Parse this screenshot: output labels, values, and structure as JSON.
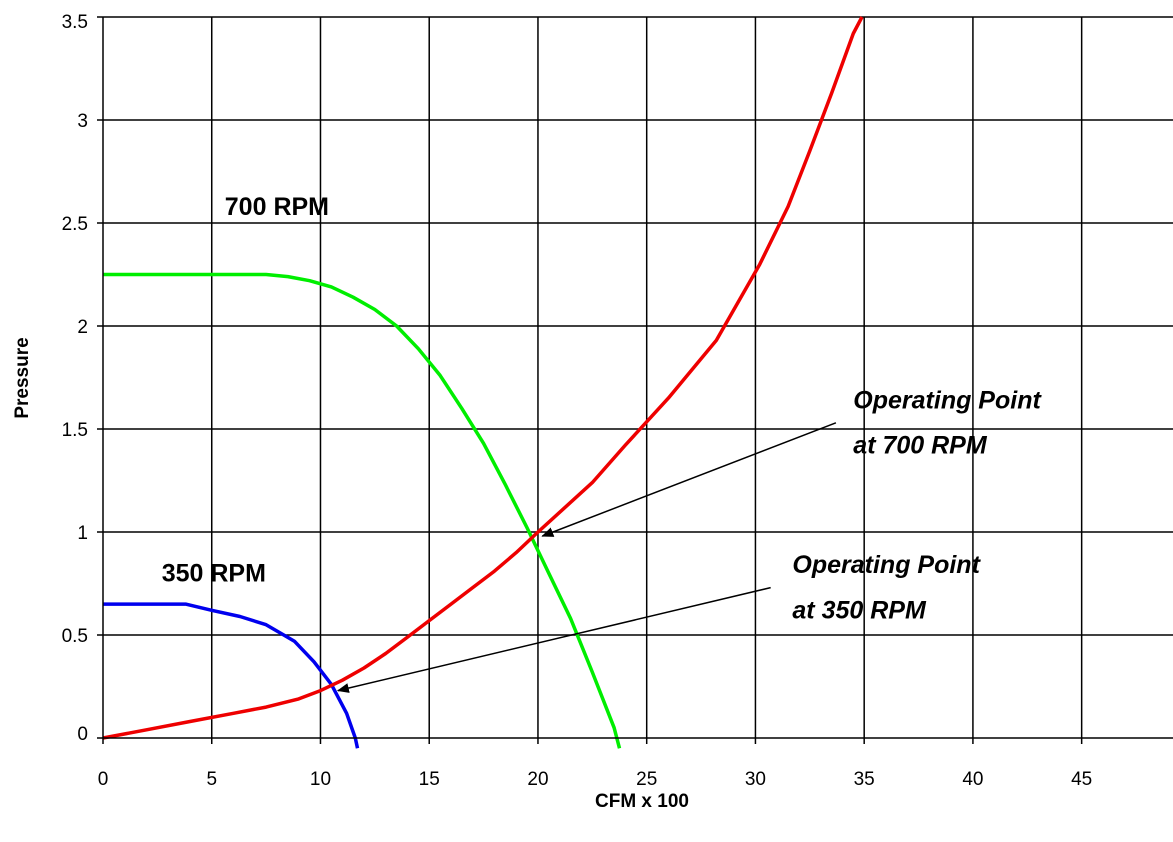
{
  "chart_data": {
    "type": "line",
    "title": "",
    "xlabel": "CFM x 100",
    "ylabel": "Pressure",
    "xlim": [
      0,
      49.2
    ],
    "ylim": [
      0,
      3.5
    ],
    "x_ticks": [
      0,
      5,
      10,
      15,
      20,
      25,
      30,
      35,
      40,
      45
    ],
    "y_ticks": [
      0,
      0.5,
      1,
      1.5,
      2,
      2.5,
      3,
      3.5
    ],
    "x_tick_labels": [
      "0",
      "5",
      "10",
      "15",
      "20",
      "25",
      "30",
      "35",
      "40",
      "45"
    ],
    "y_tick_labels": [
      "0",
      "0.5",
      "1",
      "1.5",
      "2",
      "2.5",
      "3",
      "3.5"
    ],
    "grid": true,
    "legend": "none",
    "series": [
      {
        "color": "#00ee00",
        "points": [
          [
            0,
            2.25
          ],
          [
            3,
            2.25
          ],
          [
            6,
            2.25
          ],
          [
            7.5,
            2.25
          ],
          [
            8.5,
            2.24
          ],
          [
            9.5,
            2.22
          ],
          [
            10.5,
            2.19
          ],
          [
            11.5,
            2.14
          ],
          [
            12.5,
            2.08
          ],
          [
            13.5,
            2.0
          ],
          [
            14.5,
            1.89
          ],
          [
            15.5,
            1.76
          ],
          [
            16.5,
            1.6
          ],
          [
            17.5,
            1.43
          ],
          [
            18.5,
            1.23
          ],
          [
            19.5,
            1.02
          ],
          [
            20.5,
            0.8
          ],
          [
            21.5,
            0.58
          ],
          [
            22.5,
            0.32
          ],
          [
            23.5,
            0.05
          ],
          [
            23.75,
            -0.05
          ]
        ]
      },
      {
        "color": "#0000ee",
        "points": [
          [
            0,
            0.65
          ],
          [
            2,
            0.65
          ],
          [
            3.8,
            0.65
          ],
          [
            5,
            0.62
          ],
          [
            6.3,
            0.59
          ],
          [
            7.5,
            0.55
          ],
          [
            8.8,
            0.47
          ],
          [
            9.7,
            0.37
          ],
          [
            10.5,
            0.26
          ],
          [
            11.2,
            0.12
          ],
          [
            11.6,
            0.0
          ],
          [
            11.7,
            -0.05
          ]
        ]
      },
      {
        "color": "#ee0000",
        "points": [
          [
            0,
            0
          ],
          [
            2,
            0.04
          ],
          [
            4,
            0.08
          ],
          [
            6,
            0.12
          ],
          [
            7.5,
            0.15
          ],
          [
            9,
            0.19
          ],
          [
            10,
            0.23
          ],
          [
            11,
            0.28
          ],
          [
            12,
            0.34
          ],
          [
            13,
            0.41
          ],
          [
            14,
            0.49
          ],
          [
            15,
            0.57
          ],
          [
            16,
            0.65
          ],
          [
            17,
            0.73
          ],
          [
            18,
            0.81
          ],
          [
            19,
            0.9
          ],
          [
            20,
            1.0
          ],
          [
            22.5,
            1.24
          ],
          [
            24,
            1.42
          ],
          [
            26,
            1.65
          ],
          [
            28.2,
            1.93
          ],
          [
            30.2,
            2.3
          ],
          [
            31.5,
            2.58
          ],
          [
            32.5,
            2.85
          ],
          [
            33.5,
            3.13
          ],
          [
            34.5,
            3.42
          ],
          [
            34.9,
            3.5
          ]
        ]
      }
    ],
    "annotations": [
      {
        "lines": [
          "700 RPM"
        ],
        "kind": "series-label",
        "x": 5.6,
        "y": 2.54
      },
      {
        "lines": [
          "350 RPM"
        ],
        "kind": "series-label",
        "x": 2.7,
        "y": 0.76
      },
      {
        "lines": [
          "Operating Point",
          "at 700 RPM"
        ],
        "kind": "callout",
        "x": 34.5,
        "y": 1.6,
        "line_height": 0.22,
        "arrow_from": [
          33.7,
          1.53
        ],
        "arrow_to": [
          20.2,
          0.98
        ]
      },
      {
        "lines": [
          "Operating Point",
          "at 350 RPM"
        ],
        "kind": "callout",
        "x": 31.7,
        "y": 0.8,
        "line_height": 0.22,
        "arrow_from": [
          30.7,
          0.73
        ],
        "arrow_to": [
          10.8,
          0.23
        ]
      }
    ]
  }
}
